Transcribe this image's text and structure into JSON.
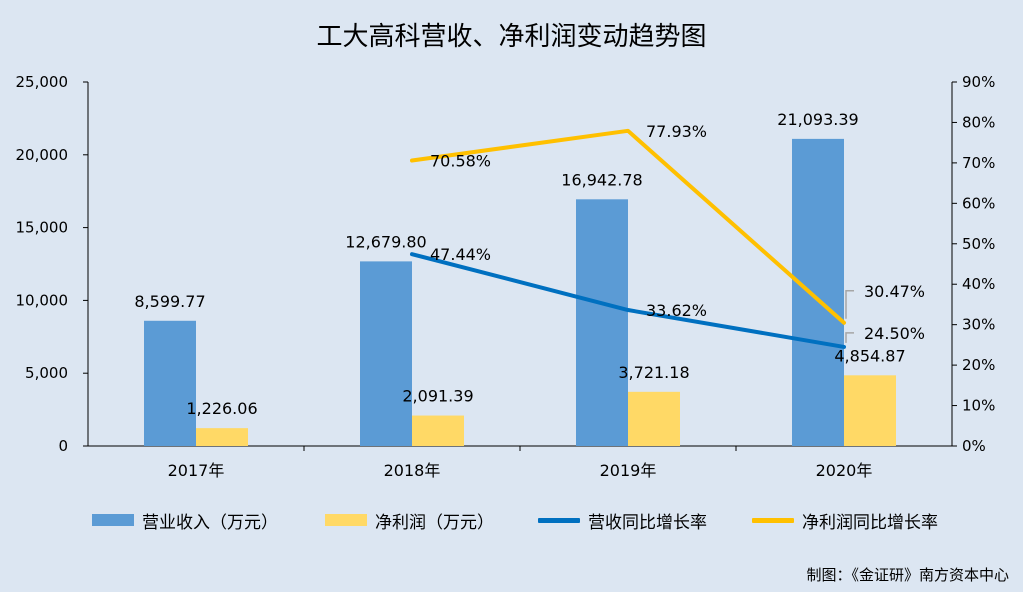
{
  "title": "工大高科营收、净利润变动趋势图",
  "credit": "制图：《金证研》南方资本中心",
  "chart_data": {
    "type": "bar",
    "categories": [
      "2017年",
      "2018年",
      "2019年",
      "2020年"
    ],
    "left_axis": {
      "ticks": [
        "0",
        "5,000",
        "10,000",
        "15,000",
        "20,000",
        "25,000"
      ],
      "ylim": [
        0,
        25000
      ]
    },
    "right_axis": {
      "ticks": [
        "0%",
        "10%",
        "20%",
        "30%",
        "40%",
        "50%",
        "60%",
        "70%",
        "80%",
        "90%"
      ],
      "ylim": [
        0,
        90
      ]
    },
    "series": [
      {
        "name": "营业收入（万元）",
        "type": "bar",
        "axis": "left",
        "color": "#5b9bd5",
        "values": [
          8599.77,
          12679.8,
          16942.78,
          21093.39
        ],
        "labels": [
          "8,599.77",
          "12,679.80",
          "16,942.78",
          "21,093.39"
        ]
      },
      {
        "name": "净利润（万元）",
        "type": "bar",
        "axis": "left",
        "color": "#ffd966",
        "values": [
          1226.06,
          2091.39,
          3721.18,
          4854.87
        ],
        "labels": [
          "1,226.06",
          "2,091.39",
          "3,721.18",
          "4,854.87"
        ]
      },
      {
        "name": "营收同比增长率",
        "type": "line",
        "axis": "right",
        "color": "#0070c0",
        "values": [
          null,
          47.44,
          33.62,
          24.5
        ],
        "labels": [
          "",
          "47.44%",
          "33.62%",
          "24.50%"
        ]
      },
      {
        "name": "净利润同比增长率",
        "type": "line",
        "axis": "right",
        "color": "#ffc000",
        "values": [
          null,
          70.58,
          77.93,
          30.47
        ],
        "labels": [
          "",
          "70.58%",
          "77.93%",
          "30.47%"
        ]
      }
    ],
    "legend_position": "bottom",
    "grid": false
  }
}
